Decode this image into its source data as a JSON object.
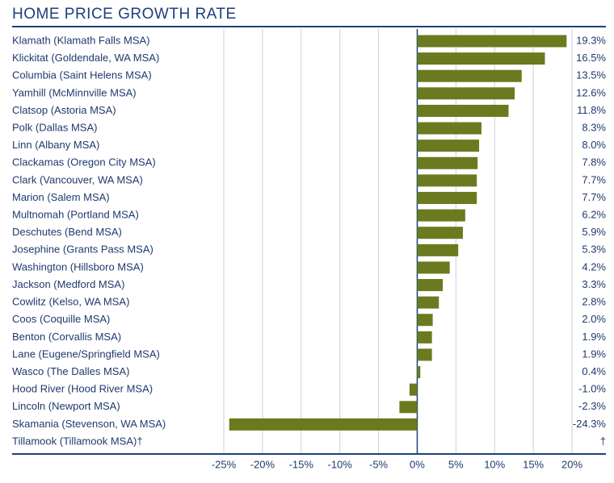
{
  "chart_data": {
    "type": "bar",
    "orientation": "horizontal",
    "title": "HOME PRICE GROWTH RATE",
    "categories": [
      "Klamath (Klamath Falls MSA)",
      "Klickitat (Goldendale, WA MSA)",
      "Columbia (Saint Helens MSA)",
      "Yamhill (McMinnville MSA)",
      "Clatsop (Astoria MSA)",
      "Polk (Dallas MSA)",
      "Linn (Albany MSA)",
      "Clackamas (Oregon City MSA)",
      "Clark (Vancouver, WA MSA)",
      "Marion (Salem MSA)",
      "Multnomah (Portland MSA)",
      "Deschutes (Bend MSA)",
      "Josephine (Grants Pass MSA)",
      "Washington (Hillsboro MSA)",
      "Jackson (Medford MSA)",
      "Cowlitz (Kelso, WA MSA)",
      "Coos (Coquille MSA)",
      "Benton (Corvallis MSA)",
      "Lane (Eugene/Springfield MSA)",
      "Wasco (The Dalles MSA)",
      "Hood River (Hood River MSA)",
      "Lincoln (Newport MSA)",
      "Skamania (Stevenson, WA MSA)",
      "Tillamook (Tillamook MSA)†"
    ],
    "values": [
      19.3,
      16.5,
      13.5,
      12.6,
      11.8,
      8.3,
      8.0,
      7.8,
      7.7,
      7.7,
      6.2,
      5.9,
      5.3,
      4.2,
      3.3,
      2.8,
      2.0,
      1.9,
      1.9,
      0.4,
      -1.0,
      -2.3,
      -24.3,
      null
    ],
    "value_labels": [
      "19.3%",
      "16.5%",
      "13.5%",
      "12.6%",
      "11.8%",
      "8.3%",
      "8.0%",
      "7.8%",
      "7.7%",
      "7.7%",
      "6.2%",
      "5.9%",
      "5.3%",
      "4.2%",
      "3.3%",
      "2.8%",
      "2.0%",
      "1.9%",
      "1.9%",
      "0.4%",
      "-1.0%",
      "-2.3%",
      "-24.3%",
      "†"
    ],
    "color": "#6b7a1f",
    "xlim": [
      -25,
      20
    ],
    "xticks": [
      {
        "value": -25,
        "label": "-25%"
      },
      {
        "value": -20,
        "label": "-20%"
      },
      {
        "value": -15,
        "label": "-15%"
      },
      {
        "value": -10,
        "label": "-10%"
      },
      {
        "value": -5,
        "label": "-5%"
      },
      {
        "value": 0,
        "label": "0%"
      },
      {
        "value": 5,
        "label": "5%"
      },
      {
        "value": 10,
        "label": "10%"
      },
      {
        "value": 15,
        "label": "15%"
      },
      {
        "value": 20,
        "label": "20%"
      }
    ],
    "grid": true
  }
}
